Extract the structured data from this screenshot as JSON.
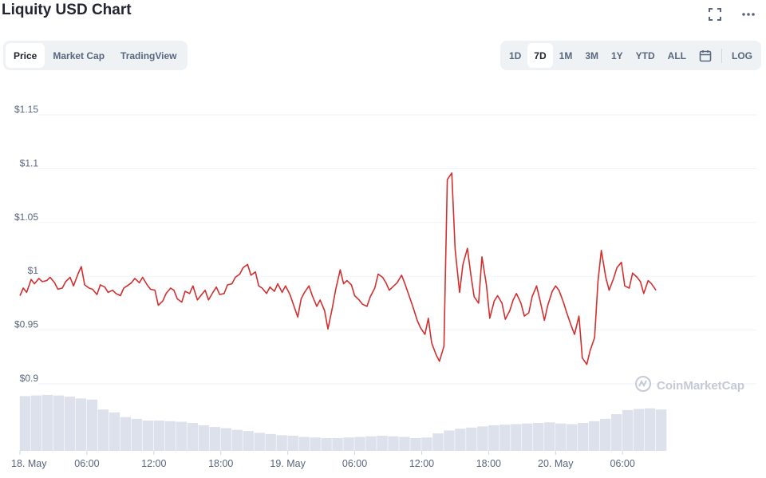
{
  "title": "Liquity USD Chart",
  "icons": {
    "fullscreen": "fullscreen-icon",
    "more": "more-icon",
    "calendar": "calendar-icon",
    "logo": "coinmarketcap-logo-icon"
  },
  "tabs": [
    {
      "label": "Price",
      "active": true
    },
    {
      "label": "Market Cap",
      "active": false
    },
    {
      "label": "TradingView",
      "active": false
    }
  ],
  "ranges": [
    {
      "label": "1D",
      "active": false
    },
    {
      "label": "7D",
      "active": true
    },
    {
      "label": "1M",
      "active": false
    },
    {
      "label": "3M",
      "active": false
    },
    {
      "label": "1Y",
      "active": false
    },
    {
      "label": "YTD",
      "active": false
    },
    {
      "label": "ALL",
      "active": false
    }
  ],
  "log_label": "LOG",
  "watermark": "CoinMarketCap",
  "colors": {
    "line": "#d32f2f",
    "volume": "#dde1ec",
    "grid": "#eff2f5",
    "axis_text": "#58667e"
  },
  "chart_data": {
    "type": "line",
    "y_ticks": [
      {
        "value": 0.9,
        "label": "$0.9"
      },
      {
        "value": 0.95,
        "label": "$0.95"
      },
      {
        "value": 1.0,
        "label": "$1"
      },
      {
        "value": 1.05,
        "label": "$1.05"
      },
      {
        "value": 1.1,
        "label": "$1.1"
      },
      {
        "value": 1.15,
        "label": "$1.15"
      }
    ],
    "ylim": [
      0.9,
      1.15
    ],
    "xlim": [
      0,
      66
    ],
    "x_ticks": [
      {
        "hour": 0,
        "label": "18. May"
      },
      {
        "hour": 6,
        "label": "06:00"
      },
      {
        "hour": 12,
        "label": "12:00"
      },
      {
        "hour": 18,
        "label": "18:00"
      },
      {
        "hour": 24,
        "label": "19. May"
      },
      {
        "hour": 30,
        "label": "06:00"
      },
      {
        "hour": 36,
        "label": "12:00"
      },
      {
        "hour": 42,
        "label": "18:00"
      },
      {
        "hour": 48,
        "label": "20. May"
      },
      {
        "hour": 54,
        "label": "06:00"
      }
    ],
    "price_hours": [
      0.0,
      0.3,
      0.6,
      1.0,
      1.3,
      1.7,
      2.0,
      2.4,
      2.7,
      3.1,
      3.4,
      3.8,
      4.1,
      4.5,
      4.8,
      5.2,
      5.5,
      5.8,
      6.2,
      6.5,
      6.9,
      7.2,
      7.6,
      7.9,
      8.3,
      8.6,
      9.0,
      9.3,
      9.6,
      10.0,
      10.3,
      10.7,
      11.0,
      11.4,
      11.7,
      12.1,
      12.4,
      12.8,
      13.1,
      13.5,
      13.8,
      14.1,
      14.5,
      14.8,
      15.2,
      15.5,
      15.9,
      16.2,
      16.6,
      16.9,
      17.3,
      17.6,
      17.9,
      18.3,
      18.6,
      19.0,
      19.3,
      19.7,
      20.0,
      20.4,
      20.7,
      21.1,
      21.4,
      21.7,
      22.1,
      22.4,
      22.8,
      23.1,
      23.5,
      23.8,
      24.2,
      24.5,
      24.9,
      25.2,
      25.5,
      25.9,
      26.2,
      26.6,
      26.9,
      27.3,
      27.6,
      28.0,
      28.3,
      28.7,
      29.0,
      29.3,
      29.7,
      30.0,
      30.4,
      30.7,
      31.1,
      31.4,
      31.8,
      32.1,
      32.5,
      32.8,
      33.1,
      33.5,
      33.8,
      34.2,
      34.5,
      34.9,
      35.2,
      35.6,
      35.9,
      36.3,
      36.6,
      36.9,
      37.3,
      37.6,
      38.0,
      38.3,
      38.7,
      39.0,
      39.4,
      39.7,
      40.1,
      40.4,
      40.7,
      41.1,
      41.4,
      41.8,
      42.1,
      42.5,
      42.8,
      43.2,
      43.5,
      43.9,
      44.2,
      44.5,
      44.9,
      45.2,
      45.6,
      45.9,
      46.3,
      46.6,
      47.0,
      47.3,
      47.7,
      48.0,
      48.3,
      48.7,
      49.0,
      49.4,
      49.7,
      50.1,
      50.4,
      50.8,
      51.1,
      51.5,
      51.8,
      52.1,
      52.5,
      52.8,
      53.2,
      53.5,
      53.9,
      54.2,
      54.6,
      54.9,
      55.3,
      55.6,
      55.9,
      56.3,
      56.6,
      57.0
    ],
    "price_values": [
      0.982,
      0.989,
      0.985,
      0.997,
      0.993,
      0.998,
      0.995,
      0.996,
      0.999,
      0.994,
      0.988,
      0.989,
      0.995,
      0.999,
      0.991,
      1.002,
      1.009,
      0.992,
      0.989,
      0.988,
      0.983,
      0.992,
      0.99,
      0.985,
      0.987,
      0.984,
      0.982,
      0.989,
      0.991,
      0.994,
      0.998,
      0.994,
      0.999,
      0.992,
      0.988,
      0.987,
      0.973,
      0.977,
      0.984,
      0.989,
      0.987,
      0.979,
      0.976,
      0.986,
      0.984,
      0.991,
      0.978,
      0.982,
      0.987,
      0.978,
      0.985,
      0.99,
      0.983,
      0.984,
      0.992,
      0.993,
      0.999,
      1.002,
      1.008,
      1.011,
      1.001,
      1.004,
      0.991,
      0.989,
      0.984,
      0.99,
      0.986,
      0.993,
      0.985,
      0.991,
      0.983,
      0.974,
      0.962,
      0.979,
      0.985,
      0.991,
      0.982,
      0.972,
      0.978,
      0.968,
      0.951,
      0.971,
      0.988,
      1.006,
      0.993,
      0.996,
      0.992,
      0.982,
      0.978,
      0.974,
      0.972,
      0.981,
      0.989,
      1.002,
      0.999,
      0.994,
      0.987,
      0.991,
      0.994,
      1.001,
      0.993,
      0.981,
      0.972,
      0.959,
      0.952,
      0.946,
      0.961,
      0.938,
      0.927,
      0.921,
      0.935,
      1.09,
      1.096,
      1.025,
      0.985,
      1.011,
      1.026,
      1.002,
      0.981,
      0.975,
      1.018,
      0.992,
      0.961,
      0.977,
      0.982,
      0.975,
      0.96,
      0.968,
      0.978,
      0.984,
      0.975,
      0.963,
      0.966,
      0.981,
      0.991,
      0.978,
      0.959,
      0.973,
      0.986,
      0.991,
      0.987,
      0.976,
      0.966,
      0.954,
      0.946,
      0.963,
      0.924,
      0.918,
      0.931,
      0.943,
      0.995,
      1.024,
      0.999,
      0.987,
      0.998,
      1.008,
      1.013,
      0.991,
      0.989,
      1.003,
      0.999,
      0.995,
      0.984,
      0.996,
      0.993,
      0.987,
      0.978,
      0.969
    ],
    "volume_hours": [
      0,
      1,
      2,
      3,
      4,
      5,
      6,
      7,
      8,
      9,
      10,
      11,
      12,
      13,
      14,
      15,
      16,
      17,
      18,
      19,
      20,
      21,
      22,
      23,
      24,
      25,
      26,
      27,
      28,
      29,
      30,
      31,
      32,
      33,
      34,
      35,
      36,
      37,
      38,
      39,
      40,
      41,
      42,
      43,
      44,
      45,
      46,
      47,
      48,
      49,
      50,
      51,
      52,
      53,
      54,
      55,
      56,
      57
    ],
    "volume_fraction": [
      0.94,
      0.95,
      0.96,
      0.95,
      0.93,
      0.9,
      0.88,
      0.71,
      0.66,
      0.58,
      0.55,
      0.52,
      0.52,
      0.51,
      0.5,
      0.48,
      0.44,
      0.41,
      0.39,
      0.36,
      0.34,
      0.31,
      0.29,
      0.27,
      0.26,
      0.24,
      0.23,
      0.22,
      0.22,
      0.23,
      0.24,
      0.25,
      0.26,
      0.25,
      0.24,
      0.22,
      0.23,
      0.3,
      0.35,
      0.38,
      0.4,
      0.42,
      0.44,
      0.45,
      0.46,
      0.47,
      0.48,
      0.49,
      0.47,
      0.46,
      0.48,
      0.51,
      0.55,
      0.63,
      0.7,
      0.72,
      0.73,
      0.71
    ]
  }
}
